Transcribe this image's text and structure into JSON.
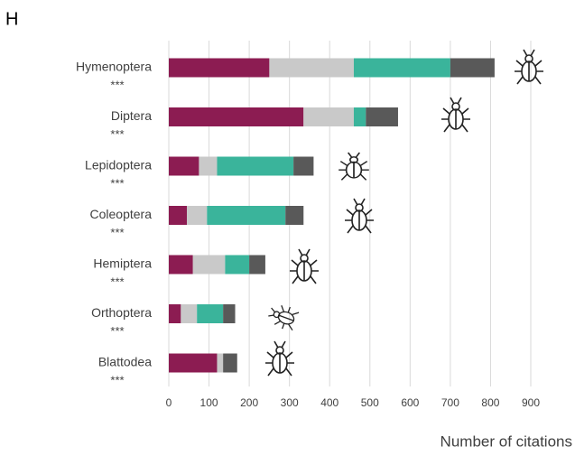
{
  "chart_data": {
    "type": "stacked-barh",
    "panel_label": "H",
    "xlabel": "Number of citations",
    "categories": [
      "Hymenoptera",
      "Diptera",
      "Lepidoptera",
      "Coleoptera",
      "Hemiptera",
      "Orthoptera",
      "Blattodea"
    ],
    "annotations": [
      "***",
      "***",
      "***",
      "***",
      "***",
      "***",
      "***"
    ],
    "series": [
      {
        "color": "#8c1c52",
        "values": [
          250,
          335,
          75,
          45,
          60,
          30,
          120
        ]
      },
      {
        "color": "#c9c9c9",
        "values": [
          210,
          125,
          45,
          50,
          80,
          40,
          15
        ]
      },
      {
        "color": "#3ab49b",
        "values": [
          240,
          30,
          190,
          195,
          60,
          65,
          0
        ]
      },
      {
        "color": "#595959",
        "values": [
          110,
          80,
          50,
          45,
          40,
          30,
          35
        ]
      }
    ],
    "xlim": [
      0,
      900
    ],
    "xticks": [
      0,
      100,
      200,
      300,
      400,
      500,
      600,
      700,
      800,
      900
    ],
    "grid": true
  }
}
